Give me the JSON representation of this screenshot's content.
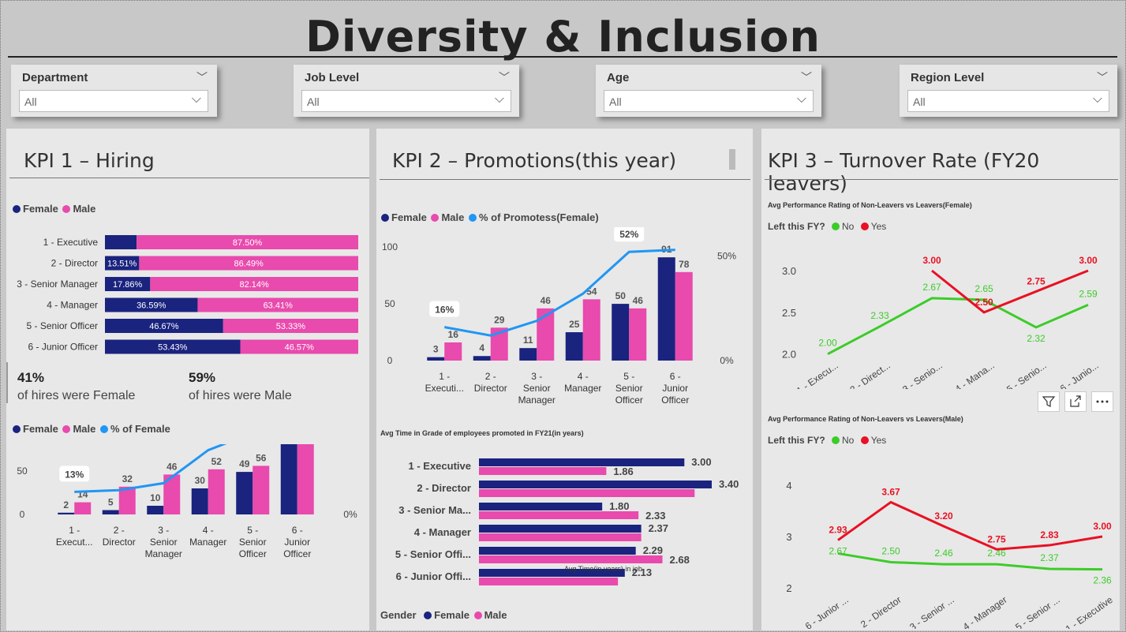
{
  "title": "Diversity & Inclusion",
  "slicers": [
    {
      "label": "Department",
      "value": "All"
    },
    {
      "label": "Job Level",
      "value": "All"
    },
    {
      "label": "Age",
      "value": "All"
    },
    {
      "label": "Region Level",
      "value": "All"
    }
  ],
  "colors": {
    "female": "#1a237e",
    "male": "#e84aad",
    "pct_line": "#2196f3",
    "no": "#3ccc28",
    "yes": "#e81123"
  },
  "icons": [
    "chevron-down-icon",
    "filter-icon",
    "focus-mode-icon",
    "more-options-icon"
  ],
  "kpi1": {
    "title": "KPI 1 – Hiring",
    "legend": {
      "female": "Female",
      "male": "Male",
      "pct": "% of Female"
    },
    "female_pct": "41%",
    "female_text": "of hires were Female",
    "male_pct": "59%",
    "male_text": "of hires were Male"
  },
  "kpi2": {
    "title": "KPI 2 – Promotions(this year)",
    "legend": {
      "female": "Female",
      "male": "Male",
      "pct": "% of Promotess(Female)"
    },
    "time_title": "Avg Time in Grade of employees promoted in FY21(in years)",
    "gender_label": "Gender"
  },
  "kpi3": {
    "title": "KPI 3 – Turnover Rate (FY20 leavers)",
    "chart1_title": "Avg Performance Rating of Non-Leavers vs Leavers(Female)",
    "chart2_title": "Avg Performance Rating of Non-Leavers vs Leavers(Male)",
    "left_label": "Left this FY?",
    "no_label": "No",
    "yes_label": "Yes"
  },
  "chart_data": [
    {
      "id": "hiring-split",
      "type": "bar",
      "orientation": "horizontal",
      "stacked": true,
      "categories": [
        "1 - Executive",
        "2 - Director",
        "3 - Senior Manager",
        "4 - Manager",
        "5 - Senior Officer",
        "6 - Junior Officer"
      ],
      "series": [
        {
          "name": "Female",
          "values": [
            12.5,
            13.51,
            17.86,
            36.59,
            46.67,
            53.43
          ],
          "labels": [
            "",
            "13.51%",
            "17.86%",
            "36.59%",
            "46.67%",
            "53.43%"
          ]
        },
        {
          "name": "Male",
          "values": [
            87.5,
            86.49,
            82.14,
            63.41,
            53.33,
            46.57
          ],
          "labels": [
            "87.50%",
            "86.49%",
            "82.14%",
            "63.41%",
            "53.33%",
            "46.57%"
          ]
        }
      ]
    },
    {
      "id": "hiring-counts",
      "type": "bar",
      "categories": [
        "1 - Execut...",
        "2 - Director",
        "3 - Senior Manager",
        "4 - Manager",
        "5 - Senior Officer",
        "6 - Junior Officer"
      ],
      "series": [
        {
          "name": "Female",
          "values": [
            2,
            5,
            10,
            30,
            49,
            109
          ]
        },
        {
          "name": "Male",
          "values": [
            14,
            32,
            46,
            52,
            56,
            95
          ]
        },
        {
          "name": "% of Female",
          "values": [
            13,
            14,
            18,
            37,
            47,
            53
          ],
          "labels": [
            "13%",
            "",
            "",
            "37%",
            "47%",
            ""
          ]
        }
      ],
      "yticks": [
        "0",
        "50",
        "100"
      ],
      "y2ticks": [
        "0%",
        "50%"
      ],
      "ylim": [
        0,
        130
      ],
      "y2lim": [
        0,
        65
      ]
    },
    {
      "id": "promotions",
      "type": "bar",
      "categories": [
        "1 - Executi...",
        "2 - Director",
        "3 - Senior Manager",
        "4 - Manager",
        "5 - Senior Officer",
        "6 - Junior Officer"
      ],
      "series": [
        {
          "name": "Female",
          "values": [
            3,
            4,
            11,
            25,
            50,
            91
          ]
        },
        {
          "name": "Male",
          "values": [
            16,
            29,
            46,
            54,
            46,
            78
          ]
        },
        {
          "name": "% of Promotess(Female)",
          "values": [
            16,
            12,
            19,
            32,
            52,
            53
          ],
          "labels": [
            "16%",
            "",
            "",
            "",
            "52%",
            ""
          ]
        }
      ],
      "yticks": [
        "0",
        "50",
        "100"
      ],
      "y2ticks": [
        "0%",
        "50%"
      ],
      "ylim": [
        0,
        105
      ],
      "y2lim": [
        0,
        57
      ]
    },
    {
      "id": "time-in-grade",
      "type": "bar",
      "orientation": "horizontal",
      "categories": [
        "1 - Executive",
        "2 - Director",
        "3 - Senior Ma...",
        "4 - Manager",
        "5 - Senior Offi...",
        "6 - Junior Offi..."
      ],
      "series": [
        {
          "name": "Female",
          "values": [
            3.0,
            3.4,
            1.8,
            2.37,
            2.29,
            2.13
          ]
        },
        {
          "name": "Male",
          "values": [
            1.86,
            3.15,
            2.33,
            2.37,
            2.68,
            2.03
          ]
        }
      ],
      "labels_female": [
        "3.00",
        "3.40",
        "1.80",
        "2.37",
        "2.29",
        "2.13"
      ],
      "labels_male": [
        "1.86",
        "",
        "2.33",
        "",
        "2.68",
        ""
      ],
      "xlabel": "Avg Time(in years) in job"
    },
    {
      "id": "turnover-female",
      "type": "line",
      "x": [
        "1 - Execu...",
        "2 - Direct...",
        "3 - Senio...",
        "4 - Mana...",
        "5 - Senio...",
        "6 - Junio..."
      ],
      "series": [
        {
          "name": "No",
          "values": [
            2.0,
            2.33,
            2.67,
            2.65,
            2.32,
            2.59
          ]
        },
        {
          "name": "Yes",
          "values": [
            null,
            null,
            3.0,
            2.5,
            2.75,
            3.0
          ]
        }
      ],
      "yticks": [
        "2.0",
        "2.5",
        "3.0"
      ],
      "ylim": [
        1.95,
        3.0
      ]
    },
    {
      "id": "turnover-male",
      "type": "line",
      "x": [
        "6 - Junior ...",
        "2 - Director",
        "3 - Senior ...",
        "4 - Manager",
        "5 - Senior ...",
        "1 - Executive"
      ],
      "series": [
        {
          "name": "No",
          "values": [
            2.67,
            2.5,
            2.46,
            2.46,
            2.37,
            2.36
          ]
        },
        {
          "name": "Yes",
          "values": [
            2.93,
            3.67,
            3.2,
            2.75,
            2.83,
            3.0
          ]
        }
      ],
      "yticks": [
        "2",
        "3",
        "4"
      ],
      "ylim": [
        2,
        4
      ]
    }
  ]
}
